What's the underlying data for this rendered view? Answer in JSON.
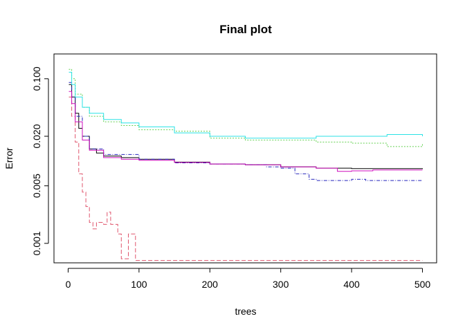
{
  "chart_data": {
    "type": "line",
    "title": "Final plot",
    "xlabel": "trees",
    "ylabel": "Error",
    "log_y": true,
    "xlim": [
      -20,
      520
    ],
    "ylim": [
      0.00058,
      0.2
    ],
    "x_ticks": [
      0,
      100,
      200,
      300,
      400,
      500
    ],
    "x_tick_labels": [
      "0",
      "100",
      "200",
      "300",
      "400",
      "500"
    ],
    "y_ticks": [
      0.001,
      0.005,
      0.02,
      0.1
    ],
    "y_tick_labels": [
      "0.001",
      "0.005",
      "0.020",
      "0.100"
    ],
    "grid": false,
    "series": [
      {
        "color": "#000000",
        "dash": "",
        "points": [
          [
            1,
            0.085
          ],
          [
            5,
            0.06
          ],
          [
            10,
            0.038
          ],
          [
            15,
            0.025
          ],
          [
            20,
            0.02
          ],
          [
            30,
            0.014
          ],
          [
            40,
            0.0125
          ],
          [
            50,
            0.0115
          ],
          [
            75,
            0.011
          ],
          [
            100,
            0.0105
          ],
          [
            150,
            0.0097
          ],
          [
            200,
            0.0092
          ],
          [
            250,
            0.009
          ],
          [
            300,
            0.0085
          ],
          [
            350,
            0.0082
          ],
          [
            400,
            0.0081
          ],
          [
            450,
            0.0081
          ],
          [
            500,
            0.008
          ]
        ]
      },
      {
        "color": "#DF536B",
        "dash": "6,3",
        "points": [
          [
            1,
            0.06
          ],
          [
            5,
            0.035
          ],
          [
            10,
            0.017
          ],
          [
            15,
            0.007
          ],
          [
            20,
            0.0042
          ],
          [
            25,
            0.0028
          ],
          [
            30,
            0.0018
          ],
          [
            35,
            0.0015
          ],
          [
            40,
            0.0018
          ],
          [
            50,
            0.0017
          ],
          [
            55,
            0.0024
          ],
          [
            60,
            0.0017
          ],
          [
            70,
            0.0013
          ],
          [
            75,
            0.00065
          ],
          [
            85,
            0.0013
          ],
          [
            95,
            0.00062
          ],
          [
            150,
            0.00062
          ],
          [
            300,
            0.00062
          ],
          [
            500,
            0.00062
          ]
        ]
      },
      {
        "color": "#61D04F",
        "dash": "2,2",
        "points": [
          [
            1,
            0.13
          ],
          [
            5,
            0.1
          ],
          [
            10,
            0.065
          ],
          [
            20,
            0.045
          ],
          [
            30,
            0.035
          ],
          [
            50,
            0.03
          ],
          [
            75,
            0.027
          ],
          [
            100,
            0.024
          ],
          [
            150,
            0.023
          ],
          [
            200,
            0.019
          ],
          [
            250,
            0.018
          ],
          [
            300,
            0.018
          ],
          [
            350,
            0.017
          ],
          [
            400,
            0.0165
          ],
          [
            450,
            0.015
          ],
          [
            500,
            0.016
          ]
        ]
      },
      {
        "color": "#2222BB",
        "dash": "5,2,1,2",
        "points": [
          [
            1,
            0.09
          ],
          [
            5,
            0.06
          ],
          [
            10,
            0.035
          ],
          [
            20,
            0.02
          ],
          [
            30,
            0.014
          ],
          [
            50,
            0.012
          ],
          [
            100,
            0.0105
          ],
          [
            150,
            0.0095
          ],
          [
            200,
            0.0092
          ],
          [
            250,
            0.009
          ],
          [
            280,
            0.0085
          ],
          [
            300,
            0.0082
          ],
          [
            320,
            0.007
          ],
          [
            340,
            0.006
          ],
          [
            350,
            0.0058
          ],
          [
            400,
            0.006
          ],
          [
            420,
            0.0058
          ],
          [
            450,
            0.0058
          ],
          [
            500,
            0.0058
          ]
        ]
      },
      {
        "color": "#28E2E5",
        "dash": "",
        "points": [
          [
            1,
            0.12
          ],
          [
            5,
            0.085
          ],
          [
            10,
            0.06
          ],
          [
            20,
            0.045
          ],
          [
            30,
            0.038
          ],
          [
            50,
            0.032
          ],
          [
            75,
            0.029
          ],
          [
            100,
            0.026
          ],
          [
            150,
            0.022
          ],
          [
            200,
            0.02
          ],
          [
            250,
            0.019
          ],
          [
            300,
            0.019
          ],
          [
            350,
            0.02
          ],
          [
            400,
            0.02
          ],
          [
            450,
            0.021
          ],
          [
            500,
            0.02
          ]
        ]
      },
      {
        "color": "#CD0BBC",
        "dash": "",
        "points": [
          [
            1,
            0.07
          ],
          [
            5,
            0.05
          ],
          [
            10,
            0.03
          ],
          [
            20,
            0.018
          ],
          [
            30,
            0.0135
          ],
          [
            50,
            0.011
          ],
          [
            75,
            0.0105
          ],
          [
            100,
            0.0102
          ],
          [
            150,
            0.0096
          ],
          [
            200,
            0.0092
          ],
          [
            250,
            0.009
          ],
          [
            300,
            0.0085
          ],
          [
            350,
            0.0082
          ],
          [
            380,
            0.0075
          ],
          [
            400,
            0.0076
          ],
          [
            430,
            0.0078
          ],
          [
            450,
            0.0078
          ],
          [
            500,
            0.0078
          ]
        ]
      }
    ]
  }
}
